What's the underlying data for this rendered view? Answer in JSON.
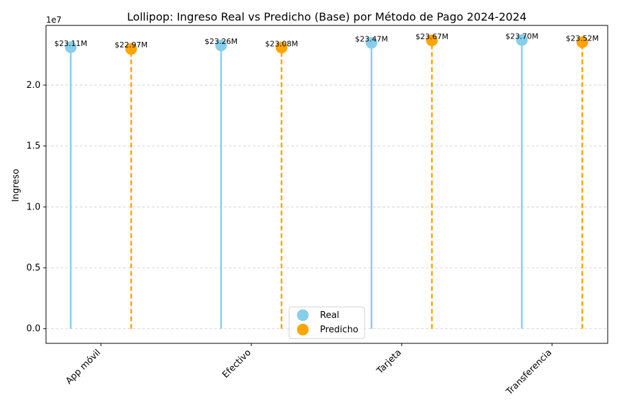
{
  "chart_data": {
    "type": "lollipop",
    "title": "Lollipop: Ingreso Real vs Predicho (Base) por Método de Pago 2024-2024",
    "xlabel": "",
    "ylabel": "Ingreso",
    "offset_text": "1e7",
    "categories": [
      "App móvil",
      "Efectivo",
      "Tarjeta",
      "Transferencia"
    ],
    "series": [
      {
        "name": "Real",
        "color": "#87CEEB",
        "line_style": "solid",
        "values": [
          23110000,
          23260000,
          23470000,
          23700000
        ],
        "labels": [
          "$23.11M",
          "$23.26M",
          "$23.47M",
          "$23.70M"
        ]
      },
      {
        "name": "Predicho",
        "color": "#FFA500",
        "line_style": "dashed",
        "values": [
          22970000,
          23080000,
          23670000,
          23520000
        ],
        "labels": [
          "$22.97M",
          "$23.08M",
          "$23.67M",
          "$23.52M"
        ]
      }
    ],
    "ylim": [
      -1200000,
      24900000
    ],
    "yticks": [
      0,
      5000000,
      10000000,
      15000000,
      20000000
    ],
    "ytick_labels": [
      "0.0",
      "0.5",
      "1.0",
      "1.5",
      "2.0"
    ],
    "grid": "y-dashed",
    "legend": "bottom-center"
  }
}
